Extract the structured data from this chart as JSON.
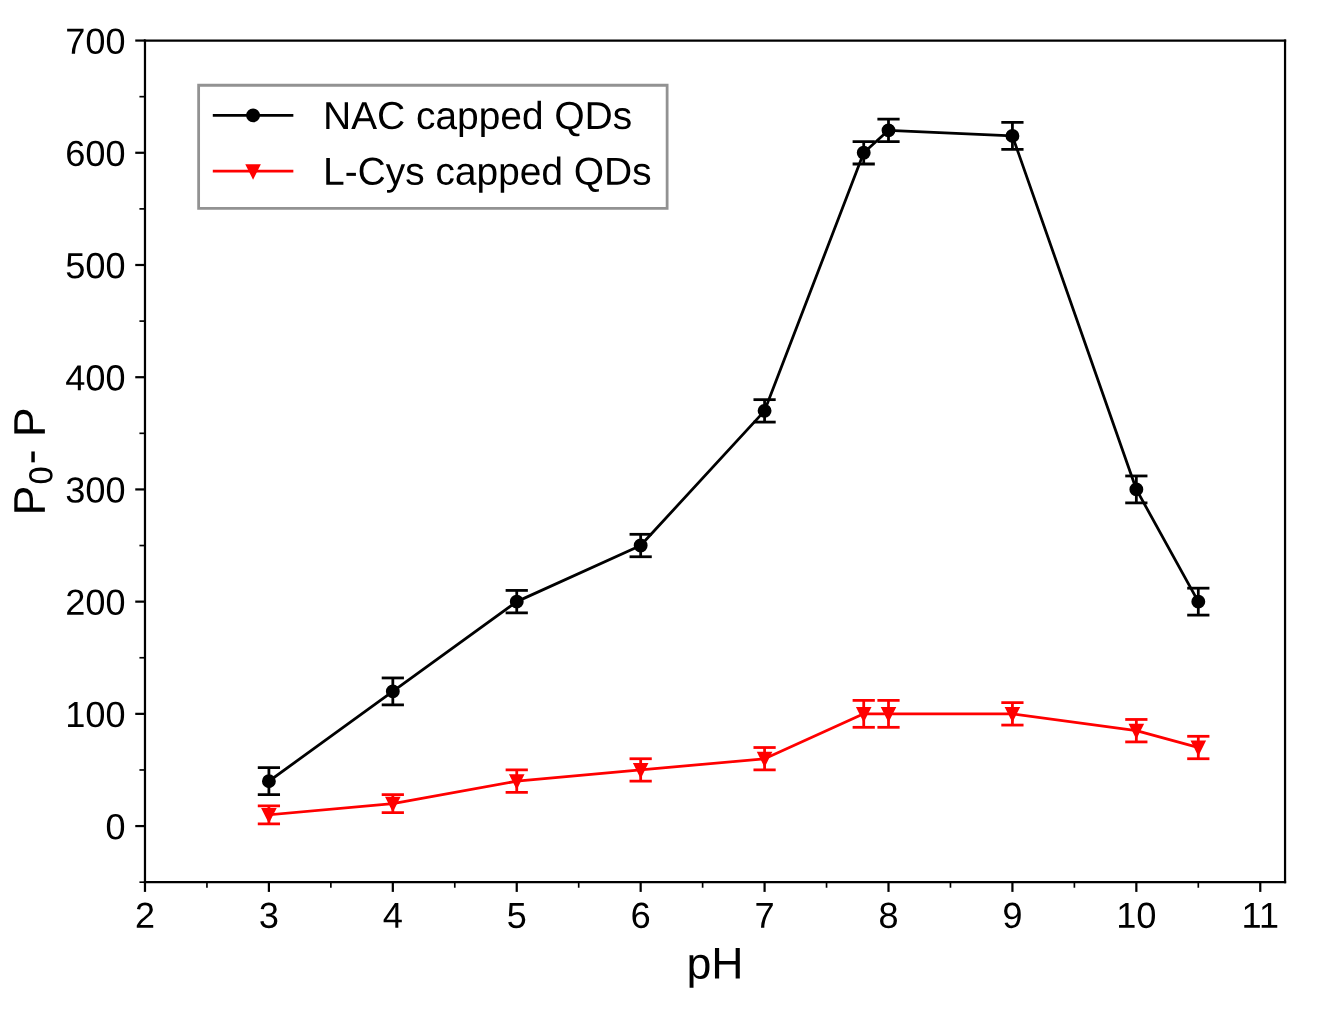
{
  "chart_data": {
    "type": "line",
    "xlabel": "pH",
    "ylabel": "P$_{0}$- P",
    "xlim": [
      2,
      11.2
    ],
    "xticks": [
      2,
      3,
      4,
      5,
      6,
      7,
      8,
      9,
      10,
      11
    ],
    "ylim": [
      -50,
      700
    ],
    "yticks": [
      0,
      100,
      200,
      300,
      400,
      500,
      600,
      700
    ],
    "legend": "top left",
    "line_style": "solid",
    "grid": false,
    "series": [
      {
        "name": "NAC capped QDs",
        "color": "#000000",
        "marker": "circle",
        "x": [
          3,
          4,
          5,
          6,
          7,
          7.8,
          8,
          9,
          10,
          10.5
        ],
        "values": [
          40,
          120,
          200,
          250,
          370,
          600,
          620,
          615,
          300,
          200
        ],
        "errors": [
          12,
          12,
          10,
          10,
          10,
          10,
          10,
          12,
          12,
          12
        ]
      },
      {
        "name": "L-Cys capped QDs",
        "color": "#ff0000",
        "marker": "triangle",
        "x": [
          3,
          4,
          5,
          6,
          7,
          7.8,
          8,
          9,
          10,
          10.5
        ],
        "values": [
          10,
          20,
          40,
          50,
          60,
          100,
          100,
          100,
          85,
          70
        ],
        "errors": [
          8,
          8,
          10,
          10,
          10,
          12,
          12,
          10,
          10,
          10
        ]
      }
    ]
  }
}
